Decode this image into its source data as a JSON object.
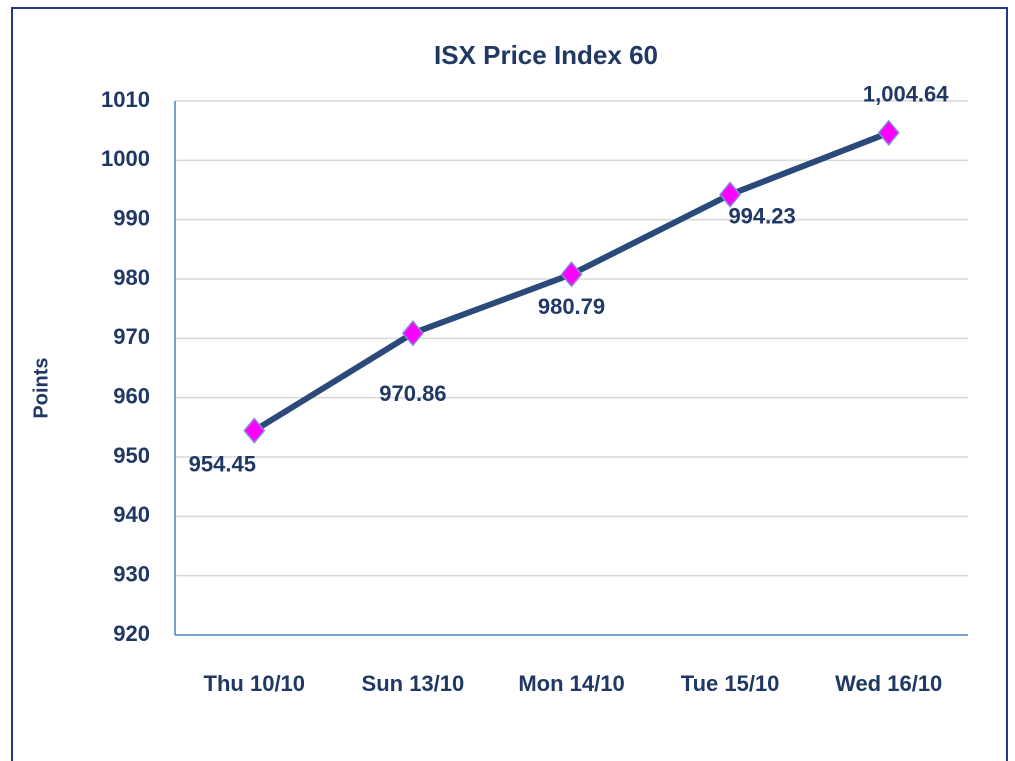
{
  "chart_data": {
    "type": "line",
    "title": "ISX Price Index 60",
    "y_label": "Points",
    "categories": [
      "Thu 10/10",
      "Sun 13/10",
      "Mon 14/10",
      "Tue 15/10",
      "Wed 16/10"
    ],
    "series": [
      {
        "name": "ISX Price Index 60",
        "color": "#2b4a7a",
        "marker_color": "#ff00ff",
        "values": [
          954.45,
          970.86,
          980.79,
          994.23,
          1004.64
        ],
        "value_labels": [
          "954.45",
          "970.86",
          "980.79",
          "994.23",
          "1,004.64"
        ]
      }
    ],
    "ylim": [
      920,
      1010
    ],
    "yticks": [
      920,
      930,
      940,
      950,
      960,
      970,
      980,
      990,
      1000,
      1010
    ],
    "grid": true
  }
}
